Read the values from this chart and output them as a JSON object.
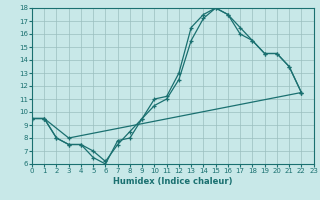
{
  "title": "",
  "xlabel": "Humidex (Indice chaleur)",
  "background_color": "#c8e8e8",
  "grid_color": "#9bbfbf",
  "line_color": "#1a7070",
  "xlim": [
    0,
    23
  ],
  "ylim": [
    6,
    18
  ],
  "series": [
    {
      "x": [
        0,
        1,
        2,
        3,
        4,
        5,
        6,
        7,
        8,
        9,
        10,
        11,
        12,
        13,
        14,
        15,
        16,
        17,
        18,
        19,
        20,
        21,
        22
      ],
      "y": [
        9.5,
        9.5,
        8.0,
        7.5,
        7.5,
        7.0,
        6.2,
        7.5,
        8.5,
        9.5,
        11.0,
        11.2,
        13.0,
        16.5,
        17.5,
        18.0,
        17.5,
        16.5,
        15.5,
        14.5,
        14.5,
        13.5,
        11.5
      ]
    },
    {
      "x": [
        0,
        1,
        2,
        3,
        4,
        5,
        6,
        7,
        8,
        9,
        10,
        11,
        12,
        13,
        14,
        15,
        16,
        17,
        18,
        19,
        20,
        21,
        22
      ],
      "y": [
        9.5,
        9.5,
        8.0,
        7.5,
        7.5,
        6.5,
        6.0,
        7.8,
        8.0,
        9.5,
        10.5,
        11.0,
        12.5,
        15.5,
        17.2,
        18.0,
        17.5,
        16.0,
        15.5,
        14.5,
        14.5,
        13.5,
        11.5
      ]
    },
    {
      "x": [
        0,
        1,
        3,
        22
      ],
      "y": [
        9.5,
        9.5,
        8.0,
        11.5
      ]
    }
  ]
}
